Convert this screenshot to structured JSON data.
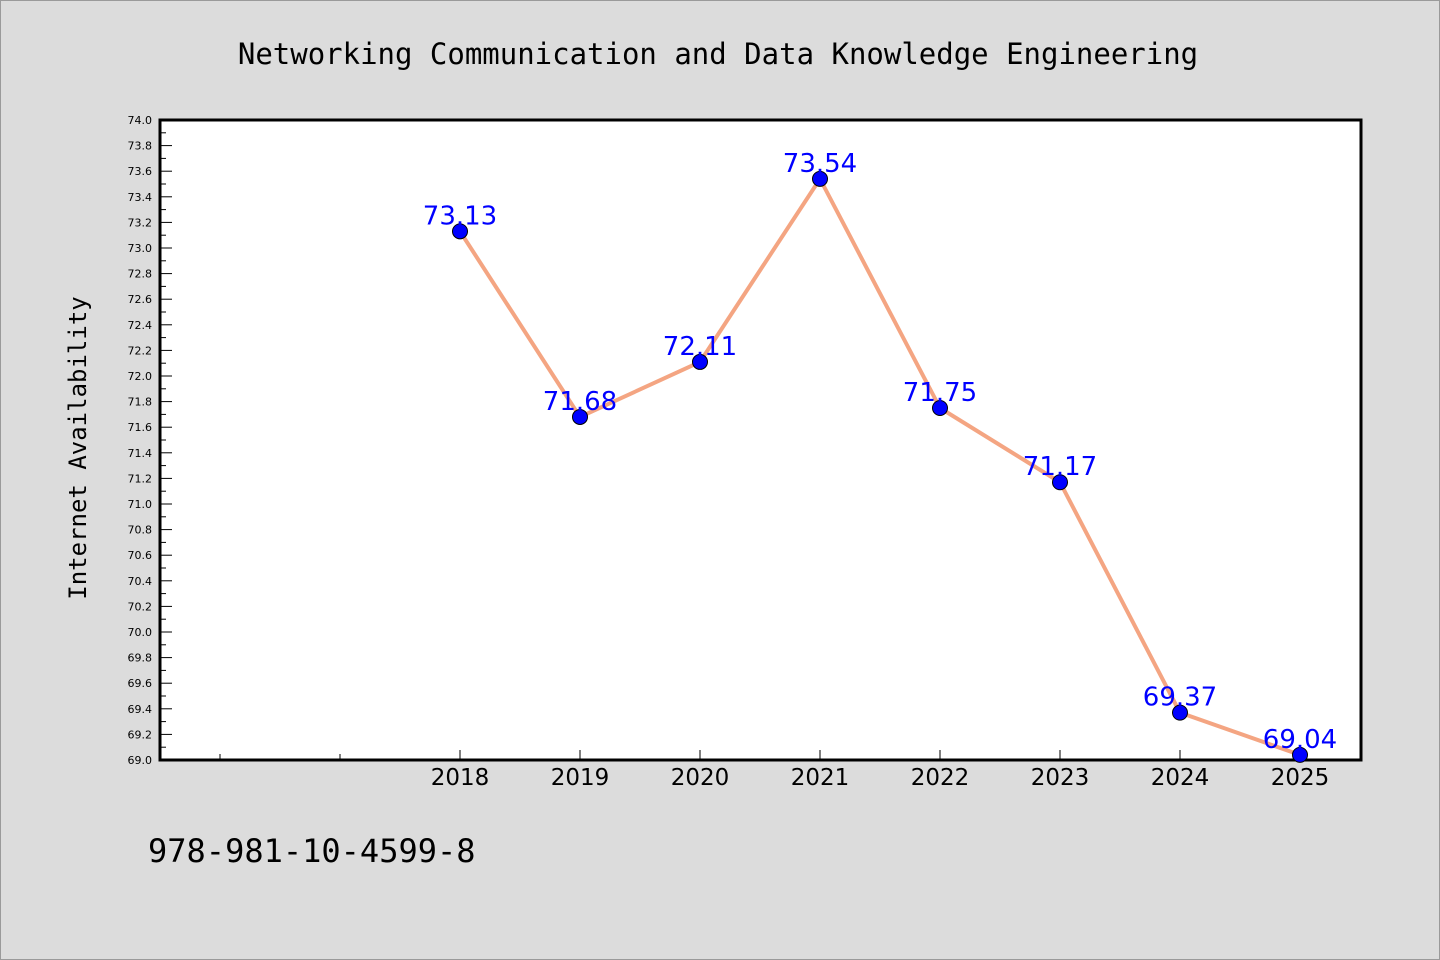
{
  "chart_data": {
    "type": "line",
    "title": "Networking Communication and Data Knowledge Engineering",
    "xlabel": "",
    "ylabel": "Internet Availability",
    "categories": [
      "2018",
      "2019",
      "2020",
      "2021",
      "2022",
      "2023",
      "2024",
      "2025"
    ],
    "values": [
      73.13,
      71.68,
      72.11,
      73.54,
      71.75,
      71.17,
      69.37,
      69.04
    ],
    "data_labels": [
      "73.13",
      "71.68",
      "72.11",
      "73.54",
      "71.75",
      "71.17",
      "69.37",
      "69.04"
    ],
    "ylim": [
      69.0,
      74.0
    ],
    "yticks": [
      "69.0",
      "69.2",
      "69.4",
      "69.6",
      "69.8",
      "70.0",
      "70.2",
      "70.4",
      "70.6",
      "70.8",
      "71.0",
      "71.2",
      "71.4",
      "71.6",
      "71.8",
      "72.0",
      "72.2",
      "72.4",
      "72.6",
      "72.8",
      "73.0",
      "73.2",
      "73.4",
      "73.6",
      "73.8",
      "74.0"
    ],
    "grid": false,
    "legend": "none",
    "colors": {
      "line": "#f4a582",
      "marker": "#0000ff",
      "label": "#0000ff",
      "background": "#dcdcdc",
      "plot_background": "#ffffff"
    }
  },
  "footer": {
    "isbn": "978-981-10-4599-8"
  }
}
